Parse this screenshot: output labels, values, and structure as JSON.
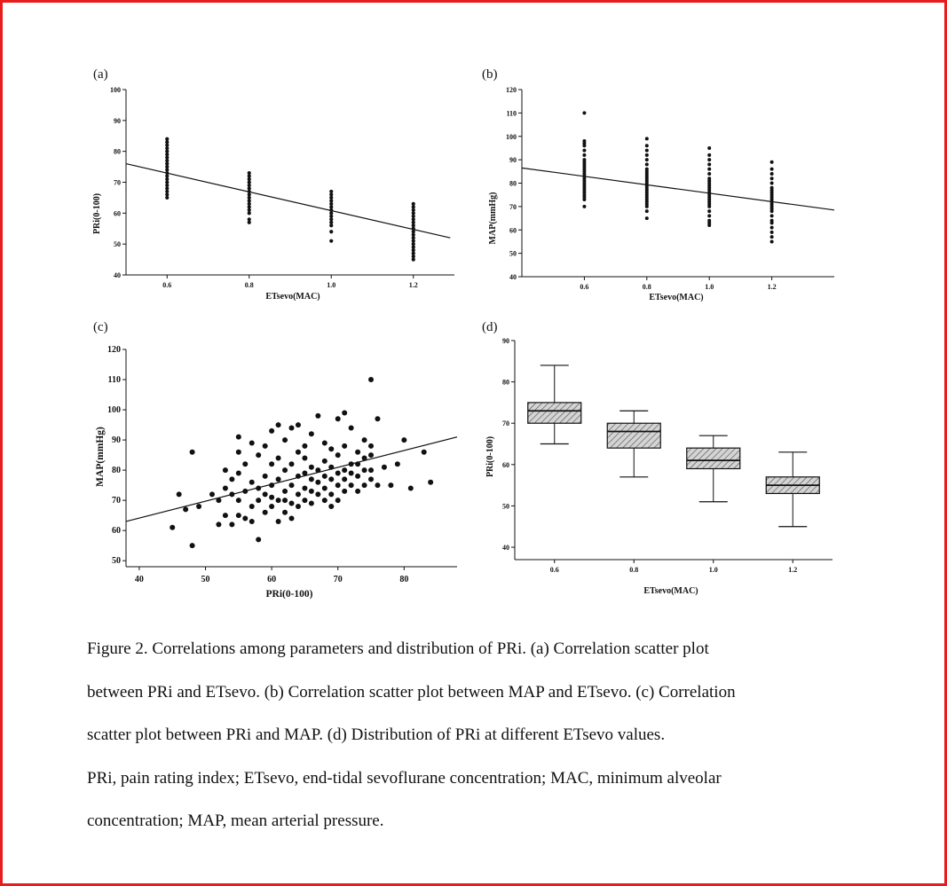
{
  "colors": {
    "frame": "#e81c1c",
    "ink": "#111111",
    "box_fill": "#b8b8b8"
  },
  "chart_data": [
    {
      "id": "a",
      "panel_label": "(a)",
      "type": "scatter",
      "xlabel": "ETsevo(MAC)",
      "ylabel": "PRi(0-100)",
      "xlim": [
        0.5,
        1.3
      ],
      "ylim": [
        40,
        100
      ],
      "xticks": [
        "0.6",
        "0.8",
        "1.0",
        "1.2"
      ],
      "yticks": [
        "40",
        "50",
        "60",
        "70",
        "80",
        "90",
        "100"
      ],
      "x_levels": [
        0.6,
        0.8,
        1.0,
        1.2
      ],
      "points_y": [
        [
          65,
          66,
          67,
          68,
          69,
          70,
          71,
          72,
          73,
          74,
          75,
          76,
          77,
          78,
          79,
          80,
          81,
          82,
          83,
          84
        ],
        [
          57,
          58,
          60,
          61,
          62,
          63,
          64,
          65,
          66,
          67,
          68,
          69,
          70,
          71,
          72,
          73
        ],
        [
          51,
          54,
          56,
          57,
          58,
          59,
          60,
          61,
          62,
          63,
          64,
          65,
          66,
          67
        ],
        [
          45,
          46,
          47,
          48,
          49,
          50,
          51,
          52,
          53,
          54,
          55,
          56,
          57,
          58,
          59,
          60,
          61,
          62,
          63
        ]
      ],
      "regression": {
        "x0": 0.5,
        "y0": 76,
        "x1": 1.29,
        "y1": 52
      }
    },
    {
      "id": "b",
      "panel_label": "(b)",
      "type": "scatter",
      "xlabel": "ETsevo(MAC)",
      "ylabel": "MAP(mmHg)",
      "xlim": [
        0.4,
        1.4
      ],
      "ylim": [
        40,
        120
      ],
      "xticks": [
        "0.6",
        "0.8",
        "1.0",
        "1.2"
      ],
      "yticks": [
        "40",
        "50",
        "60",
        "70",
        "80",
        "90",
        "100",
        "110",
        "120"
      ],
      "x_levels": [
        0.6,
        0.8,
        1.0,
        1.2
      ],
      "points_y": [
        [
          70,
          73,
          74,
          75,
          76,
          77,
          78,
          79,
          80,
          81,
          82,
          83,
          84,
          85,
          86,
          87,
          88,
          89,
          90,
          92,
          94,
          96,
          97,
          98,
          110
        ],
        [
          65,
          68,
          70,
          71,
          72,
          73,
          74,
          75,
          76,
          77,
          78,
          79,
          80,
          81,
          82,
          83,
          84,
          85,
          86,
          88,
          90,
          92,
          94,
          96,
          99
        ],
        [
          62,
          63,
          64,
          66,
          68,
          70,
          71,
          72,
          73,
          74,
          75,
          76,
          77,
          78,
          79,
          80,
          81,
          82,
          84,
          86,
          88,
          90,
          92,
          95
        ],
        [
          55,
          57,
          59,
          61,
          63,
          64,
          66,
          68,
          69,
          70,
          71,
          72,
          73,
          74,
          75,
          76,
          77,
          78,
          80,
          82,
          84,
          86,
          89
        ]
      ],
      "regression": {
        "x0": 0.4,
        "y0": 86.5,
        "x1": 1.4,
        "y1": 68.5
      }
    },
    {
      "id": "c",
      "panel_label": "(c)",
      "type": "scatter",
      "xlabel": "PRi(0-100)",
      "ylabel": "MAP(mmHg)",
      "xlim": [
        38,
        88
      ],
      "ylim": [
        48,
        120
      ],
      "xticks": [
        "40",
        "50",
        "60",
        "70",
        "80"
      ],
      "yticks": [
        "50",
        "60",
        "70",
        "80",
        "90",
        "100",
        "110",
        "120"
      ],
      "x": [
        45,
        46,
        47,
        48,
        48,
        49,
        51,
        52,
        52,
        53,
        53,
        53,
        54,
        54,
        54,
        55,
        55,
        55,
        55,
        55,
        56,
        56,
        56,
        57,
        57,
        57,
        57,
        58,
        58,
        58,
        58,
        59,
        59,
        59,
        59,
        60,
        60,
        60,
        60,
        60,
        61,
        61,
        61,
        61,
        61,
        62,
        62,
        62,
        62,
        62,
        63,
        63,
        63,
        63,
        63,
        64,
        64,
        64,
        64,
        64,
        65,
        65,
        65,
        65,
        65,
        66,
        66,
        66,
        66,
        66,
        67,
        67,
        67,
        67,
        68,
        68,
        68,
        68,
        68,
        69,
        69,
        69,
        69,
        69,
        70,
        70,
        70,
        70,
        70,
        71,
        71,
        71,
        71,
        71,
        72,
        72,
        72,
        72,
        73,
        73,
        73,
        73,
        74,
        74,
        74,
        74,
        75,
        75,
        75,
        75,
        76,
        76,
        77,
        78,
        79,
        80,
        81,
        83,
        84,
        75
      ],
      "y": [
        61,
        72,
        67,
        55,
        86,
        68,
        72,
        62,
        70,
        65,
        74,
        80,
        62,
        72,
        77,
        65,
        70,
        79,
        86,
        91,
        64,
        73,
        82,
        63,
        68,
        76,
        89,
        57,
        70,
        74,
        85,
        66,
        72,
        78,
        88,
        68,
        71,
        75,
        82,
        93,
        63,
        70,
        77,
        84,
        95,
        66,
        70,
        73,
        80,
        90,
        64,
        69,
        75,
        82,
        94,
        68,
        72,
        78,
        86,
        95,
        70,
        74,
        79,
        84,
        88,
        69,
        73,
        77,
        81,
        92,
        72,
        76,
        80,
        98,
        70,
        74,
        78,
        83,
        89,
        68,
        72,
        77,
        81,
        87,
        70,
        75,
        79,
        85,
        97,
        73,
        77,
        80,
        88,
        99,
        75,
        79,
        82,
        94,
        73,
        78,
        82,
        86,
        75,
        80,
        84,
        90,
        77,
        80,
        85,
        88,
        75,
        97,
        81,
        75,
        82,
        90,
        74,
        86,
        76,
        110
      ],
      "regression": {
        "x0": 38,
        "y0": 63,
        "x1": 88,
        "y1": 91
      }
    },
    {
      "id": "d",
      "panel_label": "(d)",
      "type": "box",
      "xlabel": "ETsevo(MAC)",
      "ylabel": "PRi(0-100)",
      "ylim": [
        37,
        90
      ],
      "categories": [
        "0.6",
        "0.8",
        "1.0",
        "1.2"
      ],
      "yticks": [
        "40",
        "50",
        "60",
        "70",
        "80",
        "90"
      ],
      "boxes": [
        {
          "min": 65,
          "q1": 70,
          "median": 73,
          "q3": 75,
          "max": 84
        },
        {
          "min": 57,
          "q1": 64,
          "median": 68,
          "q3": 70,
          "max": 73
        },
        {
          "min": 51,
          "q1": 59,
          "median": 61,
          "q3": 64,
          "max": 67
        },
        {
          "min": 45,
          "q1": 53,
          "median": 55,
          "q3": 57,
          "max": 63
        }
      ]
    }
  ],
  "caption": {
    "lines": [
      "Figure 2. Correlations among parameters and distribution of PRi. (a) Correlation scatter plot",
      "between PRi and ETsevo. (b) Correlation scatter plot between MAP and ETsevo. (c) Correlation",
      "scatter plot between PRi and MAP. (d) Distribution of PRi at different ETsevo values.",
      "PRi, pain rating index; ETsevo, end-tidal sevoflurane concentration; MAC, minimum alveolar",
      "concentration; MAP, mean arterial pressure."
    ]
  }
}
